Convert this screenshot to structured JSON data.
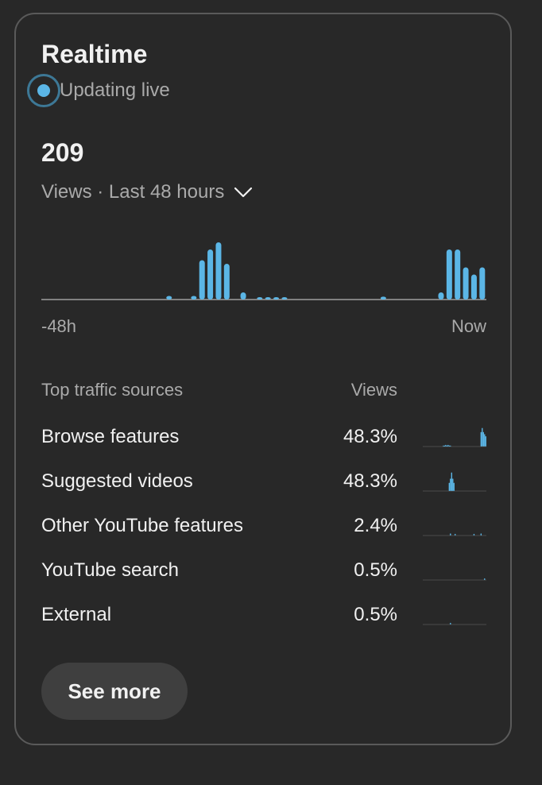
{
  "card": {
    "title": "Realtime",
    "live_label": "Updating live",
    "views_count": "209",
    "range_label": "Views · Last 48 hours",
    "axis_start": "-48h",
    "axis_end": "Now"
  },
  "chart_data": {
    "type": "bar",
    "title": "",
    "xlabel": "",
    "ylabel": "",
    "x_range": [
      "-48h",
      "Now"
    ],
    "values": [
      0,
      0,
      0,
      0,
      0,
      0,
      0,
      0,
      0,
      0,
      0,
      0,
      0,
      0,
      0,
      1,
      0,
      0,
      1,
      11,
      14,
      16,
      10,
      0,
      2,
      0,
      0.6,
      0.6,
      0.6,
      0.6,
      0,
      0,
      0,
      0,
      0,
      0,
      0,
      0,
      0,
      0,
      0,
      0.8,
      0,
      0,
      0,
      0,
      0,
      0,
      2,
      14,
      14,
      9,
      7,
      9
    ],
    "color": "#5bb6e6"
  },
  "traffic": {
    "header_source": "Top traffic sources",
    "header_views": "Views",
    "rows": [
      {
        "source": "Browse features",
        "pct": "48.3%",
        "spark": [
          0,
          0,
          0,
          0,
          0,
          0,
          0,
          0,
          0,
          0,
          0,
          0,
          0,
          0,
          0,
          0,
          0,
          0.05,
          0.05,
          0.08,
          0.05,
          0.08,
          0.05,
          0.05,
          0,
          0,
          0,
          0,
          0,
          0,
          0,
          0,
          0,
          0,
          0,
          0,
          0,
          0,
          0,
          0,
          0,
          0,
          0,
          0,
          0,
          0,
          0,
          0,
          0,
          0.7,
          0.9,
          0.7,
          0.6,
          0.5
        ]
      },
      {
        "source": "Suggested videos",
        "pct": "48.3%",
        "spark": [
          0,
          0,
          0,
          0,
          0,
          0,
          0,
          0,
          0,
          0,
          0,
          0,
          0,
          0,
          0,
          0,
          0,
          0,
          0,
          0,
          0,
          0,
          0.4,
          0.6,
          0.9,
          0.6,
          0.4,
          0,
          0,
          0,
          0,
          0,
          0,
          0,
          0,
          0,
          0,
          0,
          0,
          0,
          0,
          0,
          0,
          0,
          0,
          0,
          0,
          0,
          0,
          0,
          0,
          0,
          0,
          0
        ]
      },
      {
        "source": "Other YouTube features",
        "pct": "2.4%",
        "spark": [
          0,
          0,
          0,
          0,
          0,
          0,
          0,
          0,
          0,
          0,
          0,
          0,
          0,
          0,
          0,
          0,
          0,
          0,
          0,
          0,
          0,
          0,
          0,
          0.1,
          0,
          0,
          0,
          0.08,
          0,
          0,
          0,
          0,
          0,
          0,
          0,
          0,
          0,
          0,
          0,
          0,
          0,
          0,
          0,
          0.08,
          0,
          0,
          0,
          0,
          0,
          0.1,
          0,
          0,
          0,
          0
        ]
      },
      {
        "source": "YouTube search",
        "pct": "0.5%",
        "spark": [
          0,
          0,
          0,
          0,
          0,
          0,
          0,
          0,
          0,
          0,
          0,
          0,
          0,
          0,
          0,
          0,
          0,
          0,
          0,
          0,
          0,
          0,
          0,
          0,
          0,
          0,
          0,
          0,
          0,
          0,
          0,
          0,
          0,
          0,
          0,
          0,
          0,
          0,
          0,
          0,
          0,
          0,
          0,
          0,
          0,
          0,
          0,
          0,
          0,
          0,
          0,
          0,
          0.08,
          0
        ]
      },
      {
        "source": "External",
        "pct": "0.5%",
        "spark": [
          0,
          0,
          0,
          0,
          0,
          0,
          0,
          0,
          0,
          0,
          0,
          0,
          0,
          0,
          0,
          0,
          0,
          0,
          0,
          0,
          0,
          0,
          0,
          0.08,
          0,
          0,
          0,
          0,
          0,
          0,
          0,
          0,
          0,
          0,
          0,
          0,
          0,
          0,
          0,
          0,
          0,
          0,
          0,
          0,
          0,
          0,
          0,
          0,
          0,
          0,
          0,
          0,
          0,
          0
        ]
      }
    ]
  },
  "see_more_label": "See more",
  "colors": {
    "accent": "#5bb6e6",
    "background": "#282828",
    "muted_text": "#aaaaaa"
  },
  "icons": {
    "range": "chevron-down-icon",
    "live": "live-dot-icon"
  }
}
